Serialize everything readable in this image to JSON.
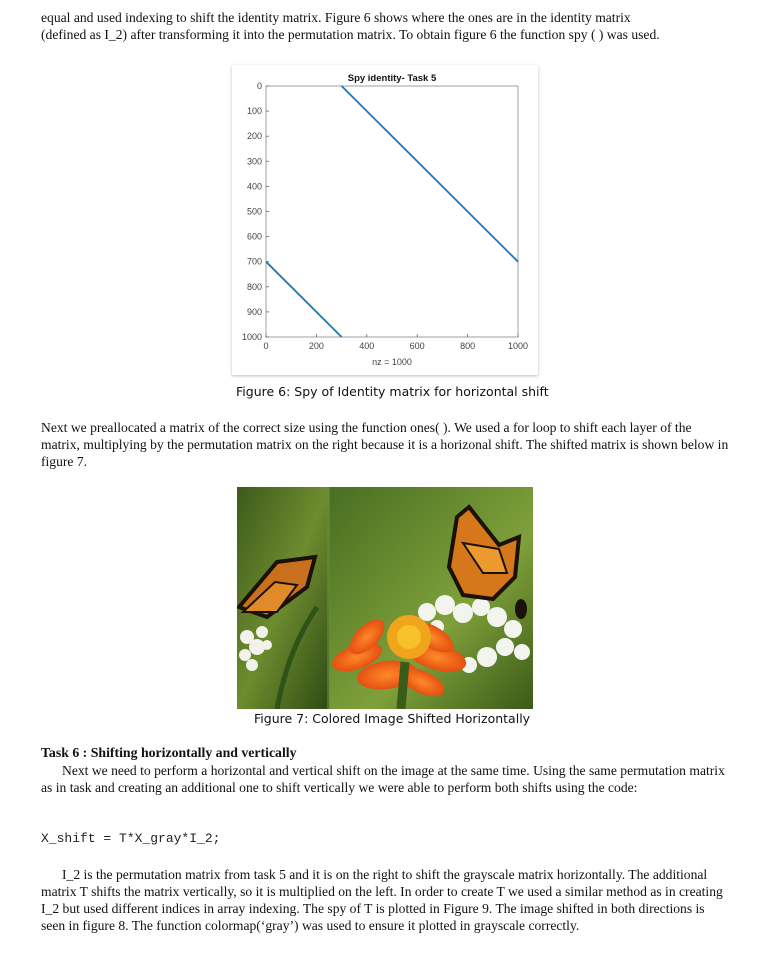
{
  "paragraphs": {
    "intro_line1": "equal and used indexing to shift the identity matrix. Figure 6 shows where the ones are in the identity matrix",
    "intro_line2": "(defined as I_2) after transforming it into the permutation matrix. To obtain figure 6 the function spy ( ) was used.",
    "prealloc": "Next we preallocated a matrix of the correct size using the function ones( ). We used a for loop to shift each layer of the matrix, multiplying by the permutation matrix on the right because it is a horizonal shift. The shifted matrix is shown below in figure 7.",
    "task6_body": "Next we need to perform a horizontal and vertical shift on the image at the same time. Using the same permutation matrix as in task and creating an additional one to shift vertically we were able to perform both shifts using the code:",
    "final": "I_2 is the permutation matrix from task 5 and it is on the right to shift the grayscale matrix horizontally. The additional matrix T shifts the matrix vertically, so it is multiplied on the left. In order to create T we used a similar method as in creating I_2 but used different indices in array indexing. The spy of T is plotted in Figure 9.  The image shifted in both directions is seen in figure 8. The function colormap(‘gray’) was used to ensure it plotted in grayscale correctly."
  },
  "captions": {
    "figure6": "Figure 6: Spy of Identity matrix for horizontal shift",
    "figure7": "Figure 7: Colored Image Shifted Horizontally"
  },
  "task6_heading": "Task 6 : Shifting horizontally and vertically",
  "code_line": "X_shift = T*X_gray*I_2;",
  "chart_data": {
    "type": "line",
    "title": "Spy identity- Task 5",
    "xlabel": "nz = 1000",
    "ylabel": "",
    "xlim": [
      0,
      1000
    ],
    "ylim": [
      0,
      1000
    ],
    "y_reversed": true,
    "x_ticks": [
      "0",
      "200",
      "400",
      "600",
      "800",
      "1000"
    ],
    "y_ticks": [
      "0",
      "100",
      "200",
      "300",
      "400",
      "500",
      "600",
      "700",
      "800",
      "900",
      "1000"
    ],
    "color": "#1f77b4",
    "series": [
      {
        "x": [
          300,
          1000
        ],
        "y": [
          0,
          700
        ]
      },
      {
        "x": [
          0,
          300
        ],
        "y": [
          700,
          1000
        ]
      }
    ]
  }
}
